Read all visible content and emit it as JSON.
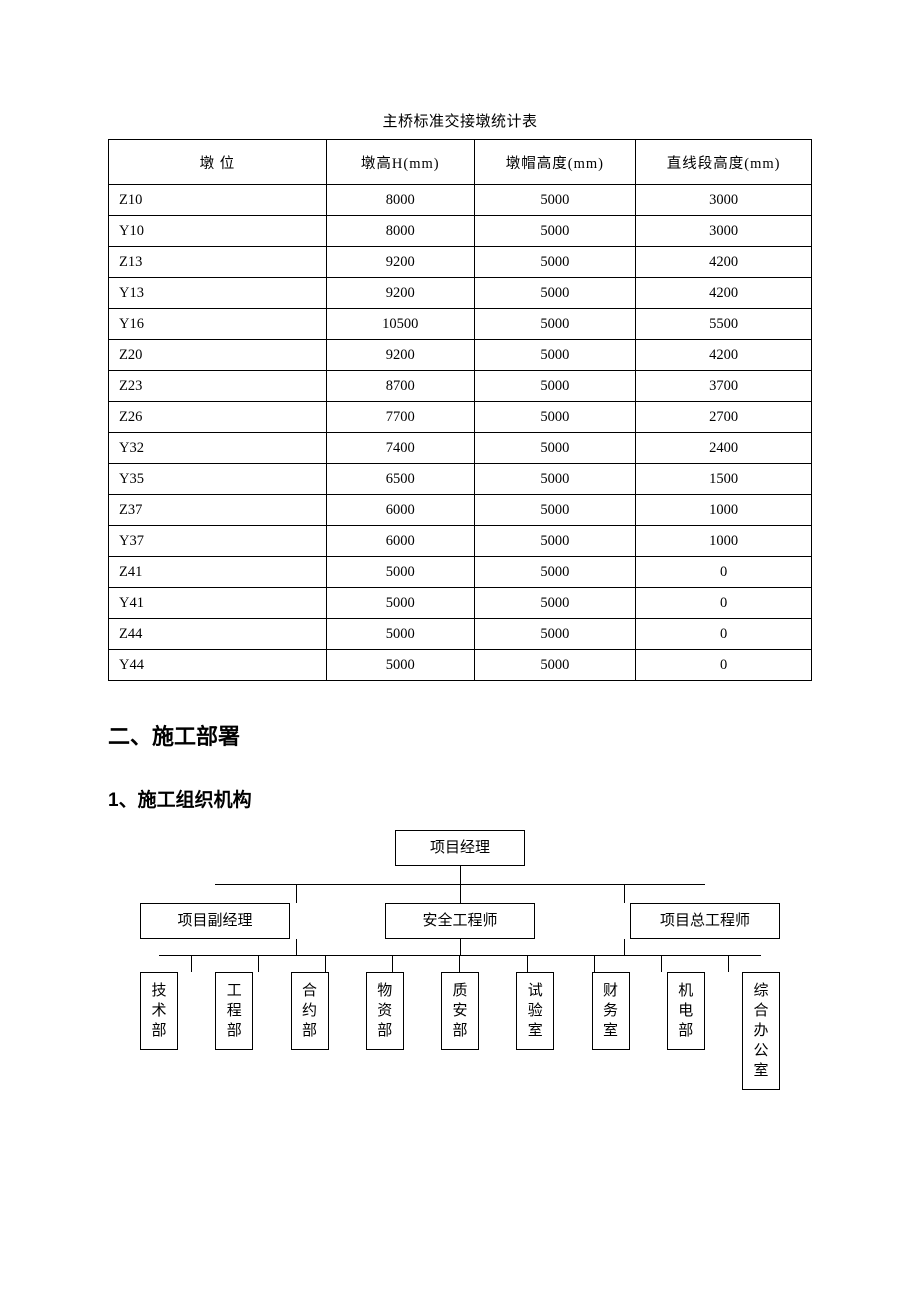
{
  "table": {
    "title": "主桥标准交接墩统计表",
    "columns": [
      "墩 位",
      "墩高H(mm)",
      "墩帽高度(mm)",
      "直线段高度(mm)"
    ],
    "col_widths_pct": [
      31,
      21,
      23,
      25
    ],
    "rows": [
      [
        "Z10",
        "8000",
        "5000",
        "3000"
      ],
      [
        "Y10",
        "8000",
        "5000",
        "3000"
      ],
      [
        "Z13",
        "9200",
        "5000",
        "4200"
      ],
      [
        "Y13",
        "9200",
        "5000",
        "4200"
      ],
      [
        "Y16",
        "10500",
        "5000",
        "5500"
      ],
      [
        "Z20",
        "9200",
        "5000",
        "4200"
      ],
      [
        "Z23",
        "8700",
        "5000",
        "3700"
      ],
      [
        "Z26",
        "7700",
        "5000",
        "2700"
      ],
      [
        "Y32",
        "7400",
        "5000",
        "2400"
      ],
      [
        "Y35",
        "6500",
        "5000",
        "1500"
      ],
      [
        "Z37",
        "6000",
        "5000",
        "1000"
      ],
      [
        "Y37",
        "6000",
        "5000",
        "1000"
      ],
      [
        "Z41",
        "5000",
        "5000",
        "0"
      ],
      [
        "Y41",
        "5000",
        "5000",
        "0"
      ],
      [
        "Z44",
        "5000",
        "5000",
        "0"
      ],
      [
        "Y44",
        "5000",
        "5000",
        "0"
      ]
    ]
  },
  "headings": {
    "h2": "二、施工部署",
    "h3": "1、施工组织机构"
  },
  "org_chart": {
    "top": "项目经理",
    "mid": [
      "项目副经理",
      "安全工程师",
      "项目总工程师"
    ],
    "leaves": [
      "技术部",
      "工程部",
      "合约部",
      "物资部",
      "质安部",
      "试验室",
      "财务室",
      "机电部",
      "综合办公室"
    ]
  },
  "styling": {
    "background_color": "#ffffff",
    "text_color": "#000000",
    "border_color": "#000000",
    "table_font_size_pt": 11,
    "title_font_size_pt": 11,
    "h2_font_size_pt": 16,
    "h3_font_size_pt": 14,
    "font_family_body": "SimSun",
    "font_family_heading": "SimHei"
  }
}
